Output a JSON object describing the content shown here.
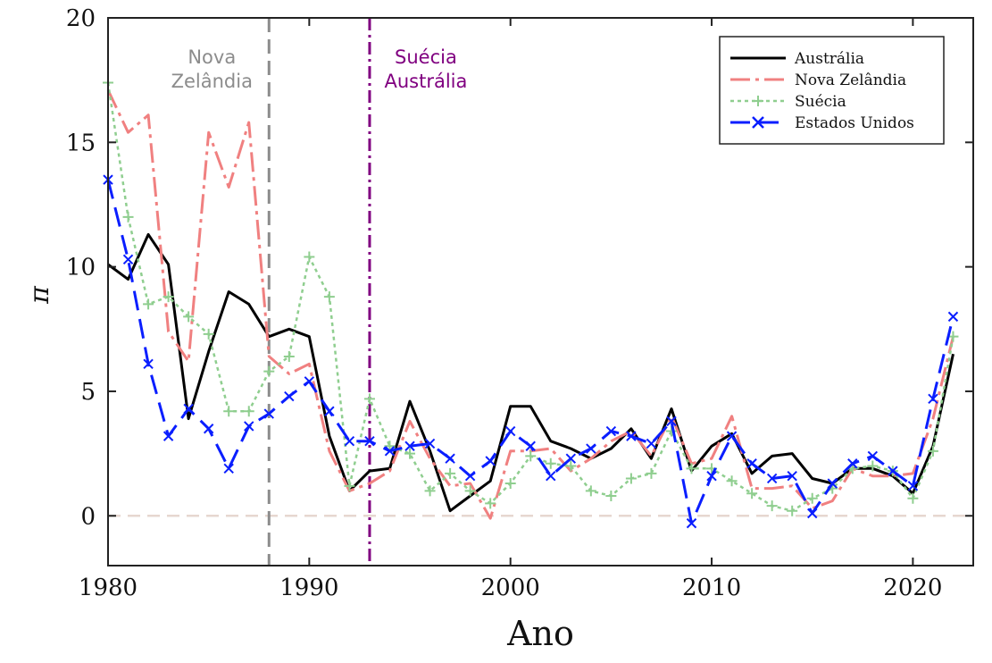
{
  "chart_data": {
    "type": "line",
    "xlabel": "Ano",
    "ylabel": "π",
    "xlim": [
      1980,
      2023
    ],
    "ylim": [
      -2,
      20
    ],
    "xticks": [
      1980,
      1990,
      2000,
      2010,
      2020
    ],
    "yticks": [
      0,
      5,
      10,
      15,
      20
    ],
    "grid": false,
    "legend_position": "top-right",
    "zero_line": {
      "y": 0,
      "color": "#e6d7d0"
    },
    "annotations": [
      {
        "x": 1988,
        "lines": [
          "Nova",
          "Zelândia"
        ],
        "color": "#8c8c8c",
        "style": "dashed"
      },
      {
        "x": 1993,
        "lines": [
          "Suécia",
          "Austrália"
        ],
        "color": "#800080",
        "style": "dashdot"
      }
    ],
    "series": [
      {
        "name": "Austrália",
        "color": "#000000",
        "dash": "",
        "marker": "none",
        "width": 3,
        "x": [
          1980,
          1981,
          1982,
          1983,
          1984,
          1985,
          1986,
          1987,
          1988,
          1989,
          1990,
          1991,
          1992,
          1993,
          1994,
          1995,
          1996,
          1997,
          1998,
          1999,
          2000,
          2001,
          2002,
          2003,
          2004,
          2005,
          2006,
          2007,
          2008,
          2009,
          2010,
          2011,
          2012,
          2013,
          2014,
          2015,
          2016,
          2017,
          2018,
          2019,
          2020,
          2021,
          2022
        ],
        "values": [
          10.1,
          9.5,
          11.3,
          10.1,
          3.9,
          6.6,
          9.0,
          8.5,
          7.2,
          7.5,
          7.2,
          3.2,
          1.0,
          1.8,
          1.9,
          4.6,
          2.6,
          0.2,
          0.8,
          1.4,
          4.4,
          4.4,
          3.0,
          2.7,
          2.3,
          2.7,
          3.5,
          2.3,
          4.3,
          1.8,
          2.8,
          3.3,
          1.7,
          2.4,
          2.5,
          1.5,
          1.3,
          1.9,
          1.9,
          1.6,
          0.9,
          2.8,
          6.5
        ]
      },
      {
        "name": "Nova Zelândia",
        "color": "#f08080",
        "dash": "22 6 4 6",
        "marker": "none",
        "width": 3,
        "x": [
          1980,
          1981,
          1982,
          1983,
          1984,
          1985,
          1986,
          1987,
          1988,
          1989,
          1990,
          1991,
          1992,
          1993,
          1994,
          1995,
          1996,
          1997,
          1998,
          1999,
          2000,
          2001,
          2002,
          2003,
          2004,
          2005,
          2006,
          2007,
          2008,
          2009,
          2010,
          2011,
          2012,
          2013,
          2014,
          2015,
          2016,
          2017,
          2018,
          2019,
          2020,
          2021,
          2022
        ],
        "values": [
          17.1,
          15.4,
          16.1,
          7.4,
          6.2,
          15.4,
          13.2,
          15.8,
          6.4,
          5.7,
          6.1,
          2.6,
          1.0,
          1.3,
          1.8,
          3.8,
          2.3,
          1.2,
          1.3,
          -0.1,
          2.6,
          2.6,
          2.7,
          1.8,
          2.3,
          3.0,
          3.4,
          2.4,
          4.0,
          2.1,
          2.3,
          4.0,
          1.1,
          1.1,
          1.2,
          0.3,
          0.6,
          1.9,
          1.6,
          1.6,
          1.7,
          3.9,
          7.2
        ]
      },
      {
        "name": "Suécia",
        "color": "#8fce8f",
        "dash": "4 4",
        "marker": "plus",
        "width": 2.5,
        "x": [
          1980,
          1981,
          1982,
          1983,
          1984,
          1985,
          1986,
          1987,
          1988,
          1989,
          1990,
          1991,
          1992,
          1993,
          1994,
          1995,
          1996,
          1997,
          1998,
          1999,
          2000,
          2001,
          2002,
          2003,
          2004,
          2005,
          2006,
          2007,
          2008,
          2009,
          2010,
          2011,
          2012,
          2013,
          2014,
          2015,
          2016,
          2017,
          2018,
          2019,
          2020,
          2021,
          2022
        ],
        "values": [
          17.4,
          12.0,
          8.5,
          8.8,
          8.0,
          7.3,
          4.2,
          4.2,
          5.8,
          6.4,
          10.4,
          8.8,
          1.2,
          4.7,
          2.8,
          2.5,
          1.0,
          1.7,
          1.0,
          0.5,
          1.3,
          2.4,
          2.1,
          2.0,
          1.0,
          0.8,
          1.5,
          1.7,
          3.4,
          1.9,
          1.9,
          1.4,
          0.9,
          0.4,
          0.2,
          0.7,
          1.1,
          1.9,
          2.0,
          1.8,
          0.7,
          2.6,
          7.2
        ]
      },
      {
        "name": "Estados Unidos",
        "color": "#0a1eff",
        "dash": "22 10",
        "marker": "x",
        "width": 3,
        "x": [
          1980,
          1981,
          1982,
          1983,
          1984,
          1985,
          1986,
          1987,
          1988,
          1989,
          1990,
          1991,
          1992,
          1993,
          1994,
          1995,
          1996,
          1997,
          1998,
          1999,
          2000,
          2001,
          2002,
          2003,
          2004,
          2005,
          2006,
          2007,
          2008,
          2009,
          2010,
          2011,
          2012,
          2013,
          2014,
          2015,
          2016,
          2017,
          2018,
          2019,
          2020,
          2021,
          2022
        ],
        "values": [
          13.5,
          10.3,
          6.1,
          3.2,
          4.3,
          3.5,
          1.9,
          3.6,
          4.1,
          4.8,
          5.4,
          4.2,
          3.0,
          3.0,
          2.6,
          2.8,
          2.9,
          2.3,
          1.6,
          2.2,
          3.4,
          2.8,
          1.6,
          2.3,
          2.7,
          3.4,
          3.2,
          2.9,
          3.8,
          -0.3,
          1.6,
          3.2,
          2.1,
          1.5,
          1.6,
          0.1,
          1.3,
          2.1,
          2.4,
          1.8,
          1.2,
          4.7,
          8.0
        ]
      }
    ]
  }
}
